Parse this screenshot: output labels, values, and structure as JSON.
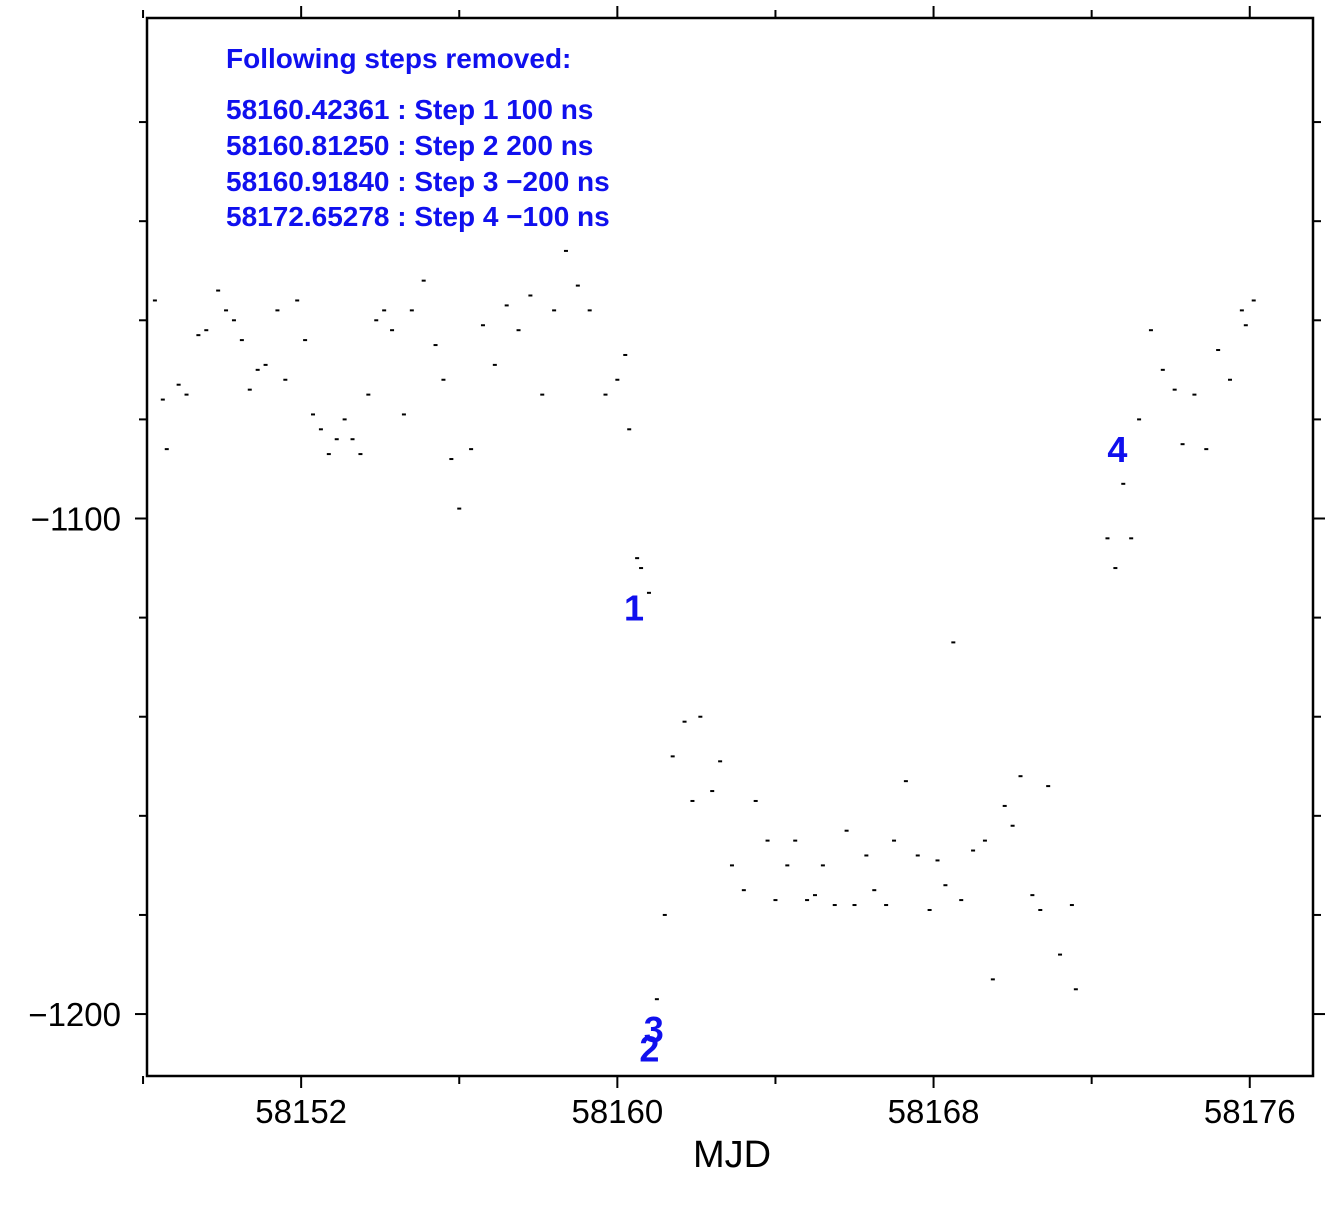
{
  "chart_data": {
    "type": "scatter",
    "title": "",
    "xlabel": "MJD",
    "ylabel": "",
    "xlim": [
      58148.1,
      58177.6
    ],
    "ylim": [
      -1212.5,
      -999
    ],
    "x_ticks": [
      58152,
      58160,
      58168,
      58176
    ],
    "y_ticks": [
      -1100,
      -1200
    ],
    "x_minor_ticks": [
      58148,
      58156,
      58164,
      58172
    ],
    "y_minor_ticks": [
      -1180,
      -1160,
      -1140,
      -1120,
      -1080,
      -1060,
      -1040,
      -1020
    ],
    "marker_color": "#000000",
    "annotation_color": "#1010ee",
    "annotation": {
      "header": "Following steps removed:",
      "lines": [
        "58160.42361 : Step 1 100 ns",
        "58160.81250 : Step 2 200 ns",
        "58160.91840 : Step 3 −200 ns",
        "58172.65278 : Step 4 −100 ns"
      ]
    },
    "step_markers": [
      {
        "label": "1",
        "x": 58160.42,
        "y": -1118
      },
      {
        "label": "2",
        "x": 58160.81,
        "y": -1207
      },
      {
        "label": "3",
        "x": 58160.92,
        "y": -1203
      },
      {
        "label": "4",
        "x": 58172.65,
        "y": -1086
      }
    ],
    "series": [
      {
        "points": [
          [
            58148.3,
            -1056
          ],
          [
            58148.5,
            -1076
          ],
          [
            58148.6,
            -1086
          ],
          [
            58148.9,
            -1073
          ],
          [
            58149.1,
            -1075
          ],
          [
            58149.4,
            -1063
          ],
          [
            58149.6,
            -1062
          ],
          [
            58149.9,
            -1054
          ],
          [
            58150.1,
            -1058
          ],
          [
            58150.3,
            -1060
          ],
          [
            58150.5,
            -1064
          ],
          [
            58150.7,
            -1074
          ],
          [
            58150.9,
            -1070
          ],
          [
            58151.1,
            -1069
          ],
          [
            58151.4,
            -1058
          ],
          [
            58151.6,
            -1072
          ],
          [
            58151.9,
            -1056
          ],
          [
            58152.1,
            -1064
          ],
          [
            58152.3,
            -1079
          ],
          [
            58152.5,
            -1082
          ],
          [
            58152.7,
            -1087
          ],
          [
            58152.9,
            -1084
          ],
          [
            58153.1,
            -1080
          ],
          [
            58153.3,
            -1084
          ],
          [
            58153.5,
            -1087
          ],
          [
            58153.7,
            -1075
          ],
          [
            58153.9,
            -1060
          ],
          [
            58154.1,
            -1058
          ],
          [
            58154.3,
            -1062
          ],
          [
            58154.6,
            -1079
          ],
          [
            58154.8,
            -1058
          ],
          [
            58155.1,
            -1052
          ],
          [
            58155.4,
            -1065
          ],
          [
            58155.6,
            -1072
          ],
          [
            58155.8,
            -1088
          ],
          [
            58156.0,
            -1098
          ],
          [
            58156.3,
            -1086
          ],
          [
            58156.6,
            -1061
          ],
          [
            58156.9,
            -1069
          ],
          [
            58157.2,
            -1057
          ],
          [
            58157.5,
            -1062
          ],
          [
            58157.8,
            -1055
          ],
          [
            58158.1,
            -1075
          ],
          [
            58158.4,
            -1058
          ],
          [
            58158.7,
            -1046
          ],
          [
            58159.0,
            -1053
          ],
          [
            58159.3,
            -1058
          ],
          [
            58159.7,
            -1075
          ],
          [
            58160.0,
            -1072
          ],
          [
            58160.2,
            -1067
          ],
          [
            58160.3,
            -1082
          ],
          [
            58160.5,
            -1108
          ],
          [
            58160.6,
            -1110
          ],
          [
            58160.8,
            -1115
          ],
          [
            58161.0,
            -1197
          ],
          [
            58161.2,
            -1180
          ],
          [
            58161.4,
            -1148
          ],
          [
            58161.7,
            -1141
          ],
          [
            58161.9,
            -1157
          ],
          [
            58162.1,
            -1140
          ],
          [
            58162.4,
            -1155
          ],
          [
            58162.6,
            -1149
          ],
          [
            58162.9,
            -1170
          ],
          [
            58163.2,
            -1175
          ],
          [
            58163.5,
            -1157
          ],
          [
            58163.8,
            -1165
          ],
          [
            58164.0,
            -1177
          ],
          [
            58164.3,
            -1170
          ],
          [
            58164.5,
            -1165
          ],
          [
            58164.8,
            -1177
          ],
          [
            58165.0,
            -1176
          ],
          [
            58165.2,
            -1170
          ],
          [
            58165.5,
            -1178
          ],
          [
            58165.8,
            -1163
          ],
          [
            58166.0,
            -1178
          ],
          [
            58166.3,
            -1168
          ],
          [
            58166.5,
            -1175
          ],
          [
            58166.8,
            -1178
          ],
          [
            58167.0,
            -1165
          ],
          [
            58167.3,
            -1153
          ],
          [
            58167.6,
            -1168
          ],
          [
            58167.9,
            -1179
          ],
          [
            58168.1,
            -1169
          ],
          [
            58168.3,
            -1174
          ],
          [
            58168.5,
            -1125
          ],
          [
            58168.7,
            -1177
          ],
          [
            58169.0,
            -1167
          ],
          [
            58169.3,
            -1165
          ],
          [
            58169.5,
            -1193
          ],
          [
            58169.8,
            -1158
          ],
          [
            58170.0,
            -1162
          ],
          [
            58170.2,
            -1152
          ],
          [
            58170.5,
            -1176
          ],
          [
            58170.7,
            -1179
          ],
          [
            58170.9,
            -1154
          ],
          [
            58171.2,
            -1188
          ],
          [
            58171.5,
            -1178
          ],
          [
            58171.6,
            -1195
          ],
          [
            58172.4,
            -1104
          ],
          [
            58172.6,
            -1110
          ],
          [
            58172.8,
            -1093
          ],
          [
            58173.0,
            -1104
          ],
          [
            58173.2,
            -1080
          ],
          [
            58173.5,
            -1062
          ],
          [
            58173.8,
            -1070
          ],
          [
            58174.1,
            -1074
          ],
          [
            58174.3,
            -1085
          ],
          [
            58174.6,
            -1075
          ],
          [
            58174.9,
            -1086
          ],
          [
            58175.2,
            -1066
          ],
          [
            58175.5,
            -1072
          ],
          [
            58175.8,
            -1058
          ],
          [
            58175.9,
            -1061
          ],
          [
            58176.1,
            -1056
          ]
        ]
      }
    ]
  }
}
